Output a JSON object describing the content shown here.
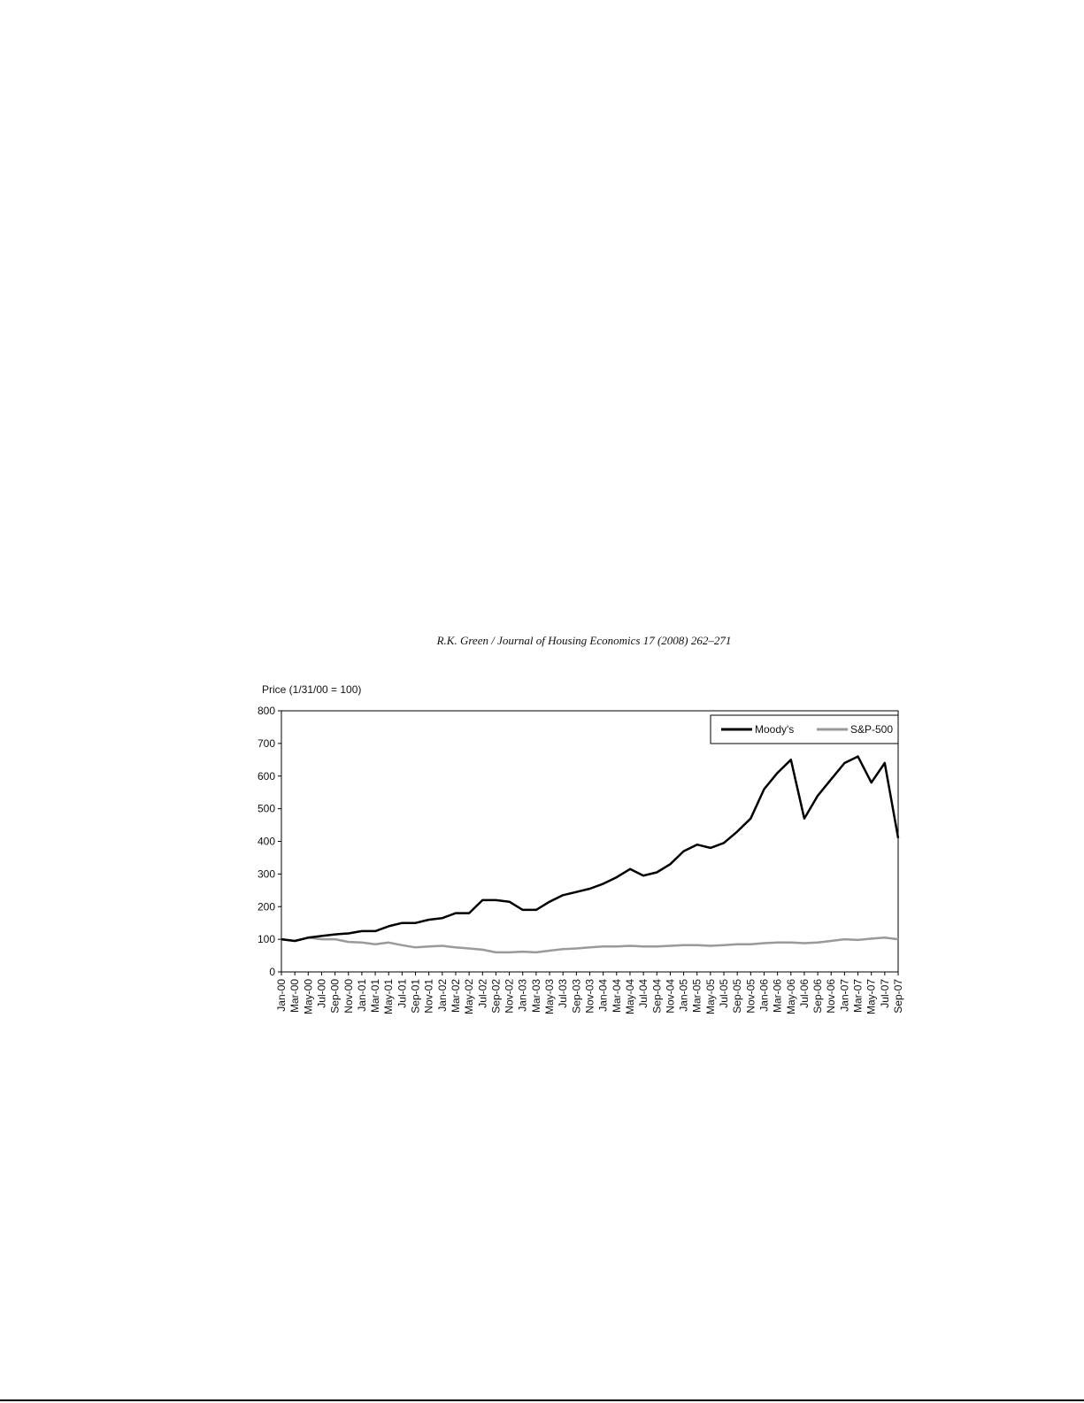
{
  "header": {
    "running_head": "R.K. Green / Journal of Housing Economics 17 (2008) 262–271"
  },
  "chart_data": {
    "type": "line",
    "y_label": "Price (1/31/00 = 100)",
    "categories": [
      "Jan-00",
      "Mar-00",
      "May-00",
      "Jul-00",
      "Sep-00",
      "Nov-00",
      "Jan-01",
      "Mar-01",
      "May-01",
      "Jul-01",
      "Sep-01",
      "Nov-01",
      "Jan-02",
      "Mar-02",
      "May-02",
      "Jul-02",
      "Sep-02",
      "Nov-02",
      "Jan-03",
      "Mar-03",
      "May-03",
      "Jul-03",
      "Sep-03",
      "Nov-03",
      "Jan-04",
      "Mar-04",
      "May-04",
      "Jul-04",
      "Sep-04",
      "Nov-04",
      "Jan-05",
      "Mar-05",
      "May-05",
      "Jul-05",
      "Sep-05",
      "Nov-05",
      "Jan-06",
      "Mar-06",
      "May-06",
      "Jul-06",
      "Sep-06",
      "Nov-06",
      "Jan-07",
      "Mar-07",
      "May-07",
      "Jul-07",
      "Sep-07"
    ],
    "series": [
      {
        "name": "Moody's",
        "color": "#000000",
        "values": [
          100,
          95,
          105,
          110,
          115,
          118,
          125,
          125,
          140,
          150,
          150,
          160,
          165,
          180,
          180,
          220,
          220,
          215,
          190,
          190,
          215,
          235,
          245,
          255,
          270,
          290,
          315,
          295,
          305,
          330,
          370,
          390,
          380,
          395,
          430,
          470,
          560,
          610,
          650,
          470,
          540,
          590,
          640,
          660,
          580,
          640,
          410
        ]
      },
      {
        "name": "S&P-500",
        "color": "#9a9a9a",
        "values": [
          100,
          95,
          105,
          100,
          100,
          92,
          90,
          85,
          90,
          82,
          75,
          78,
          80,
          75,
          72,
          68,
          60,
          60,
          62,
          60,
          65,
          70,
          72,
          75,
          78,
          78,
          80,
          78,
          78,
          80,
          82,
          82,
          80,
          82,
          85,
          85,
          88,
          90,
          90,
          88,
          90,
          95,
          100,
          98,
          102,
          105,
          100
        ]
      }
    ],
    "ylim": [
      0,
      800
    ],
    "yticks": [
      0,
      100,
      200,
      300,
      400,
      500,
      600,
      700,
      800
    ],
    "legend": "upper right"
  }
}
